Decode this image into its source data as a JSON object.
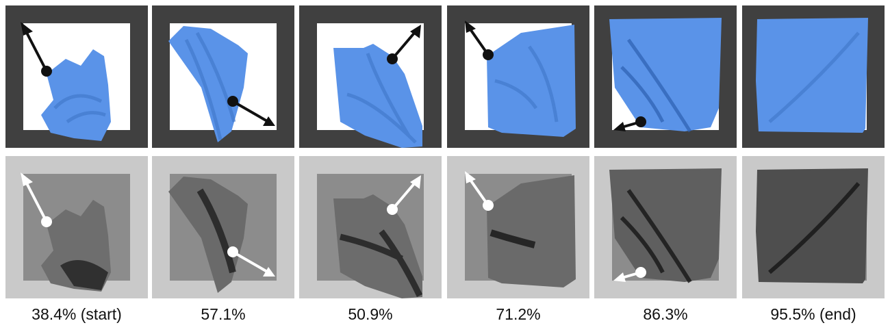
{
  "colors": {
    "frame_top": "#404040",
    "window_top": "#ffffff",
    "cloth": "#5a93e8",
    "frame_bottom": "#c9c9c9",
    "window_bottom": "#8c8c8c",
    "arrow_top": "#111111",
    "arrow_bottom": "#ffffff"
  },
  "steps": [
    {
      "caption": "38.4% (start)",
      "coverage_percent": 38.4,
      "arrow": "grab-toward-top-left"
    },
    {
      "caption": "57.1%",
      "coverage_percent": 57.1,
      "arrow": "grab-toward-bottom-right"
    },
    {
      "caption": "50.9%",
      "coverage_percent": 50.9,
      "arrow": "grab-toward-top-right"
    },
    {
      "caption": "71.2%",
      "coverage_percent": 71.2,
      "arrow": "grab-toward-top-left"
    },
    {
      "caption": "86.3%",
      "coverage_percent": 86.3,
      "arrow": "grab-toward-left"
    },
    {
      "caption": "95.5% (end)",
      "coverage_percent": 95.5,
      "arrow": "none"
    }
  ]
}
